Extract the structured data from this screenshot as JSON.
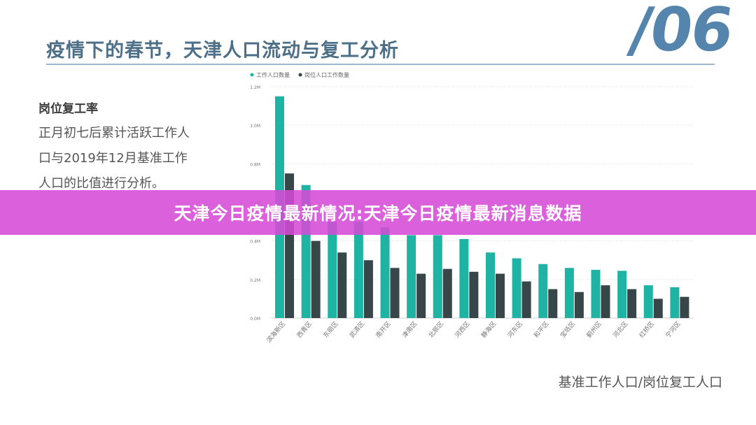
{
  "slide": {
    "title": "疫情下的春节，天津人口流动与复工分析",
    "number": "/06",
    "heading": "岗位复工率",
    "body_lines": [
      "正月初七后累计活跃工作人",
      "口与2019年12月基准工作",
      "人口的比值进行分析。"
    ],
    "footnote": "基准工作人口/岗位复工人口"
  },
  "banner": {
    "text": "天津今日疫情最新情况:天津今日疫情最新消息数据"
  },
  "colors": {
    "title": "#4d6f88",
    "number": "#5585ad",
    "banner": "#d64ad6",
    "series_1": "#1fb3a3",
    "series_2": "#374649"
  },
  "chart_data": {
    "type": "bar",
    "legend_position": "top-left",
    "grid": true,
    "ylim": [
      0,
      1.2
    ],
    "yticks": [
      "0.0M",
      "0.2M",
      "0.4M",
      "0.6M",
      "0.8M",
      "1.0M",
      "1.2M"
    ],
    "categories": [
      "滨海新区",
      "西青区",
      "东丽区",
      "武清区",
      "南开区",
      "津南区",
      "北辰区",
      "河西区",
      "静海区",
      "河东区",
      "和平区",
      "宝坻区",
      "蓟州区",
      "河北区",
      "红桥区",
      "宁河区"
    ],
    "series": [
      {
        "name": "工作人口数量",
        "values": [
          1.15,
          0.69,
          0.5,
          0.5,
          0.47,
          0.43,
          0.43,
          0.41,
          0.34,
          0.31,
          0.28,
          0.26,
          0.25,
          0.245,
          0.17,
          0.16
        ]
      },
      {
        "name": "岗位人口工作数量",
        "values": [
          0.75,
          0.4,
          0.34,
          0.3,
          0.26,
          0.23,
          0.255,
          0.24,
          0.23,
          0.19,
          0.15,
          0.135,
          0.17,
          0.15,
          0.1,
          0.11
        ]
      }
    ]
  }
}
